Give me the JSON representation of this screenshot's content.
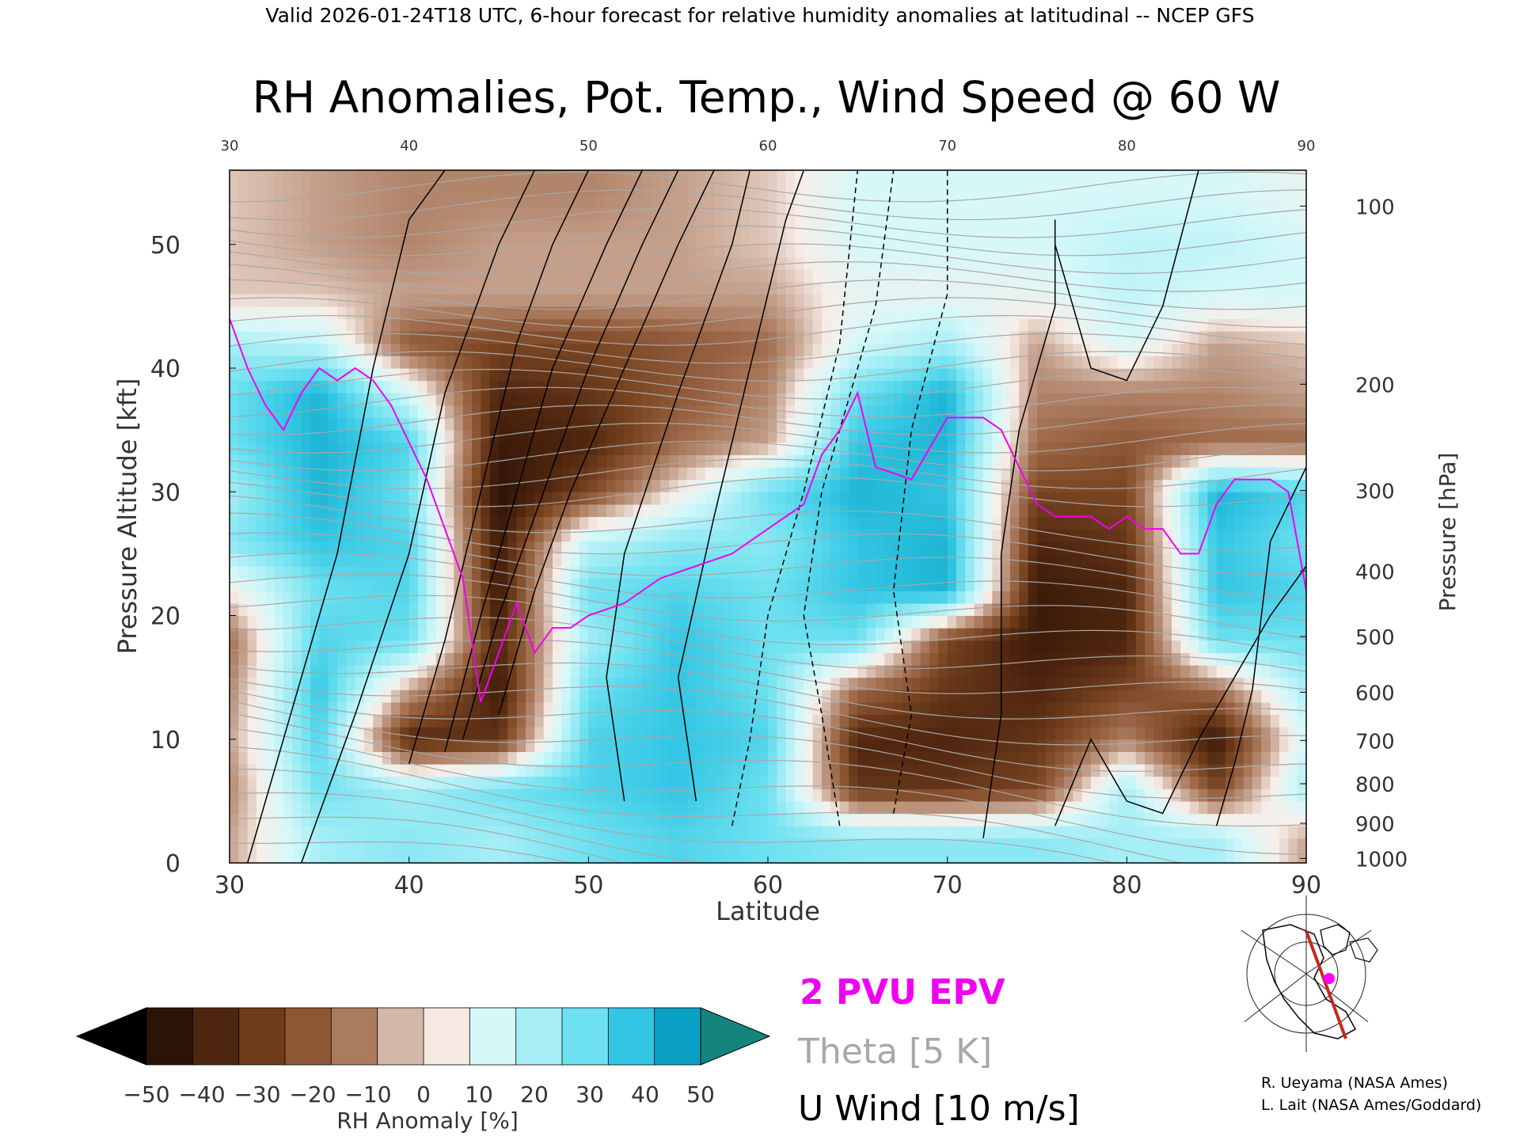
{
  "header": "Valid 2026-01-24T18 UTC, 6-hour forecast for relative humidity anomalies at latitudinal -- NCEP GFS",
  "title": "RH Anomalies, Pot. Temp., Wind Speed @ 60 W",
  "chart_data": {
    "type": "heatmap",
    "title": "RH Anomalies, Pot. Temp., Wind Speed @ 60 W",
    "xlabel": "Latitude",
    "ylabel_left": "Pressure Altitude [kft]",
    "ylabel_right": "Pressure [hPa]",
    "xlim": [
      30,
      90
    ],
    "ylim_kft": [
      0,
      56
    ],
    "x_ticks": [
      "30",
      "40",
      "50",
      "60",
      "70",
      "80",
      "90"
    ],
    "top_ticks": [
      "30",
      "40",
      "50",
      "60",
      "70",
      "80",
      "90"
    ],
    "y_ticks_left": [
      "0",
      "10",
      "20",
      "30",
      "40",
      "50"
    ],
    "y_ticks_right": [
      {
        "label": "1000",
        "kft": 0.36
      },
      {
        "label": "900",
        "kft": 3.2
      },
      {
        "label": "800",
        "kft": 6.4
      },
      {
        "label": "700",
        "kft": 9.9
      },
      {
        "label": "600",
        "kft": 13.8
      },
      {
        "label": "500",
        "kft": 18.3
      },
      {
        "label": "400",
        "kft": 23.6
      },
      {
        "label": "300",
        "kft": 30.1
      },
      {
        "label": "200",
        "kft": 38.7
      },
      {
        "label": "100",
        "kft": 53.1
      }
    ],
    "rh_anomaly_grid": {
      "latitudes": [
        30,
        35,
        40,
        45,
        50,
        55,
        60,
        65,
        70,
        75,
        80,
        85,
        90
      ],
      "altitudes_kft": [
        2,
        6,
        10,
        14,
        18,
        22,
        26,
        30,
        34,
        38,
        42,
        46,
        50,
        54
      ],
      "values_percent": [
        [
          -10,
          20,
          25,
          20,
          30,
          35,
          30,
          25,
          25,
          25,
          20,
          20,
          -10
        ],
        [
          -15,
          30,
          20,
          30,
          35,
          40,
          30,
          -35,
          -35,
          -30,
          20,
          -30,
          20
        ],
        [
          -10,
          35,
          -40,
          -35,
          35,
          40,
          35,
          -40,
          -40,
          -35,
          -15,
          -45,
          10
        ],
        [
          -15,
          40,
          -10,
          -45,
          30,
          40,
          30,
          -20,
          -35,
          -40,
          -30,
          -20,
          20
        ],
        [
          -20,
          35,
          30,
          -40,
          20,
          40,
          30,
          30,
          -30,
          -45,
          -40,
          30,
          30
        ],
        [
          0,
          30,
          35,
          -45,
          30,
          35,
          30,
          40,
          45,
          -45,
          -40,
          40,
          35
        ],
        [
          25,
          40,
          35,
          -45,
          15,
          25,
          25,
          40,
          45,
          -40,
          -35,
          40,
          30
        ],
        [
          20,
          45,
          30,
          -50,
          -30,
          0,
          30,
          45,
          40,
          -30,
          -30,
          45,
          35
        ],
        [
          30,
          45,
          35,
          -45,
          -40,
          -20,
          -10,
          40,
          45,
          -20,
          -25,
          -20,
          -20
        ],
        [
          30,
          45,
          10,
          -40,
          -35,
          -25,
          -15,
          30,
          45,
          -15,
          -15,
          -15,
          -10
        ],
        [
          20,
          15,
          -25,
          -30,
          -30,
          -25,
          -20,
          10,
          20,
          -10,
          10,
          -10,
          -5
        ],
        [
          -5,
          -5,
          -10,
          -10,
          -10,
          -10,
          -10,
          5,
          5,
          5,
          15,
          10,
          10
        ],
        [
          -5,
          -10,
          -15,
          -10,
          -10,
          -10,
          -5,
          10,
          10,
          10,
          15,
          15,
          10
        ],
        [
          -5,
          -10,
          -15,
          -15,
          -15,
          -10,
          -5,
          10,
          10,
          10,
          10,
          10,
          5
        ]
      ]
    },
    "pvu_line": {
      "lat": [
        30,
        31,
        32,
        33,
        34,
        35,
        36,
        37,
        38,
        39,
        40,
        41,
        42,
        43,
        44,
        45,
        46,
        47,
        48,
        49,
        50,
        52,
        54,
        56,
        58,
        60,
        61,
        62,
        63,
        64,
        65,
        66,
        68,
        70,
        72,
        73,
        74,
        75,
        76,
        77,
        78,
        79,
        80,
        81,
        82,
        83,
        84,
        85,
        86,
        87,
        88,
        89,
        90
      ],
      "kft": [
        44,
        40,
        37,
        35,
        38,
        40,
        39,
        40,
        39,
        37,
        34,
        31,
        27,
        23,
        13,
        17,
        21,
        17,
        19,
        19,
        20,
        21,
        23,
        24,
        25,
        27,
        28,
        29,
        33,
        35,
        38,
        32,
        31,
        36,
        36,
        35,
        32,
        29,
        28,
        28,
        28,
        27,
        28,
        27,
        27,
        25,
        25,
        29,
        31,
        31,
        31,
        30,
        22
      ]
    },
    "theta_interval": "5 K",
    "u_wind_interval": "10 m/s",
    "colorbar": {
      "label": "RH Anomaly [%]",
      "ticks": [
        "−50",
        "−40",
        "−30",
        "−20",
        "−10",
        "0",
        "10",
        "20",
        "30",
        "40",
        "50"
      ],
      "colors": [
        "#2c1307",
        "#4e250e",
        "#6e3b1b",
        "#8d5733",
        "#aa7b5e",
        "#d3b8aa",
        "#f5e9e2",
        "#d6f8f9",
        "#a7eef6",
        "#6ee1f0",
        "#33c6e4",
        "#0aa0c4"
      ],
      "under_color": "#000000",
      "over_color": "#14857c"
    }
  },
  "legend": {
    "pvu": "2 PVU EPV",
    "theta": "Theta [5 K]",
    "uwind": "U Wind [10 m/s]"
  },
  "colors": {
    "pvu": "#f000f0",
    "theta": "#a8a8a8",
    "uwind": "#000000",
    "map_marker": "#ff00ff",
    "map_section_line": "#c8281e"
  },
  "credits": {
    "line1": "R. Ueyama (NASA Ames)",
    "line2": "L. Lait (NASA Ames/Goddard)"
  }
}
